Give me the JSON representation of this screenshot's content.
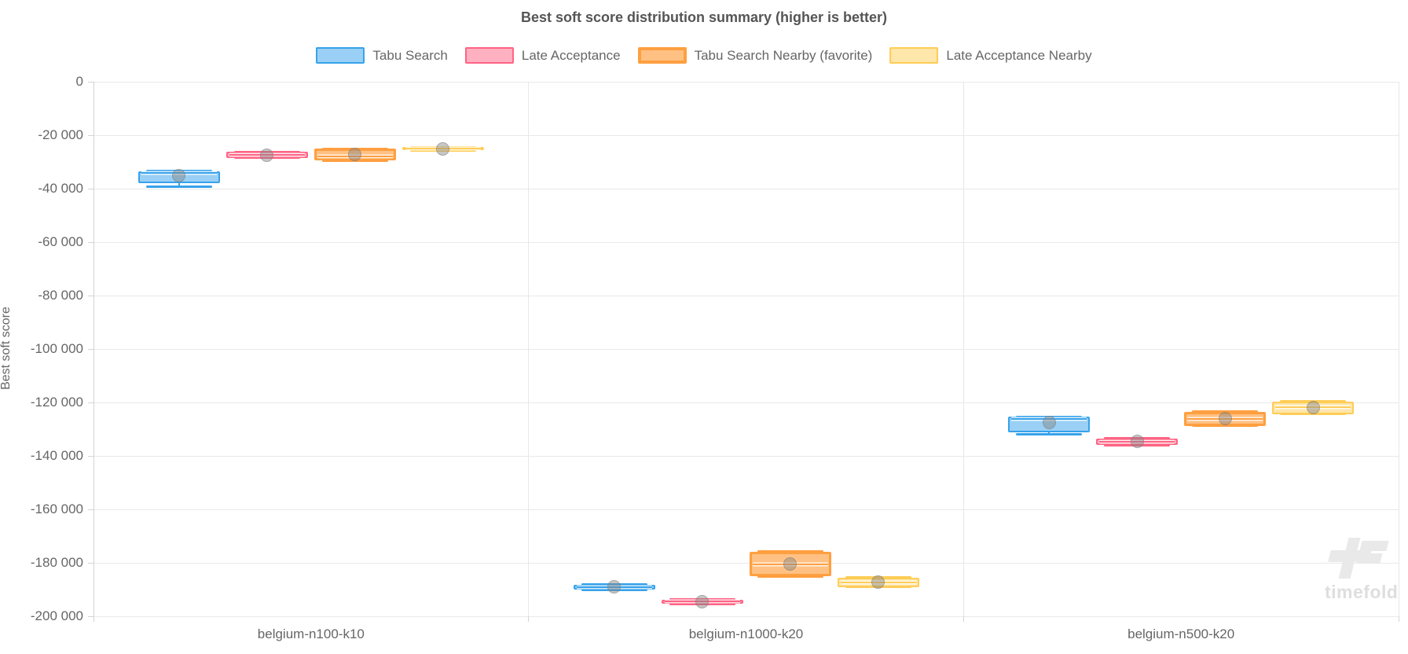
{
  "title": "Best soft score distribution summary (higher is better)",
  "watermark": "timefold",
  "chart_data": {
    "type": "boxplot",
    "title": "Best soft score distribution summary (higher is better)",
    "xlabel": "",
    "ylabel": "Best soft score",
    "ylim": [
      -200000,
      0
    ],
    "ytick_step": 20000,
    "ytick_labels": [
      "0",
      "-20 000",
      "-40 000",
      "-60 000",
      "-80 000",
      "-100 000",
      "-120 000",
      "-140 000",
      "-160 000",
      "-180 000",
      "-200 000"
    ],
    "grid": true,
    "legend_position": "top",
    "categories": [
      "belgium-n100-k10",
      "belgium-n1000-k20",
      "belgium-n500-k20"
    ],
    "series": [
      {
        "name": "Tabu Search",
        "color": "#36A2EB",
        "fill": "rgba(54,162,235,0.5)",
        "favorite": false,
        "boxes": [
          {
            "low": -39300,
            "q1": -37800,
            "median": -34000,
            "q3": -33400,
            "high": -33400,
            "mean": -35200
          },
          {
            "low": -190000,
            "q1": -190000,
            "median": -189100,
            "q3": -188200,
            "high": -188200,
            "mean": -189100
          },
          {
            "low": -131800,
            "q1": -131200,
            "median": -126200,
            "q3": -125300,
            "high": -125300,
            "mean": -127600
          }
        ]
      },
      {
        "name": "Late Acceptance",
        "color": "#FF6384",
        "fill": "rgba(255,99,132,0.5)",
        "favorite": false,
        "boxes": [
          {
            "low": -28400,
            "q1": -28400,
            "median": -27400,
            "q3": -26300,
            "high": -26300,
            "mean": -27500
          },
          {
            "low": -195300,
            "q1": -195300,
            "median": -194500,
            "q3": -193800,
            "high": -193800,
            "mean": -194500
          },
          {
            "low": -135900,
            "q1": -135900,
            "median": -134700,
            "q3": -133500,
            "high": -133500,
            "mean": -134700
          }
        ]
      },
      {
        "name": "Tabu Search Nearby (favorite)",
        "color": "#FF9F40",
        "fill": "rgba(255,159,64,0.65)",
        "favorite": true,
        "boxes": [
          {
            "low": -29500,
            "q1": -29500,
            "median": -28000,
            "q3": -25100,
            "high": -25100,
            "mean": -27200
          },
          {
            "low": -185000,
            "q1": -185000,
            "median": -180600,
            "q3": -175800,
            "high": -175800,
            "mean": -180500
          },
          {
            "low": -128800,
            "q1": -128800,
            "median": -126100,
            "q3": -123500,
            "high": -123500,
            "mean": -126100
          }
        ]
      },
      {
        "name": "Late Acceptance Nearby",
        "color": "#FFCD56",
        "fill": "rgba(255,205,86,0.5)",
        "favorite": false,
        "boxes": [
          {
            "low": -25700,
            "q1": -25700,
            "median": -25100,
            "q3": -24500,
            "high": -24500,
            "mean": -25100
          },
          {
            "low": -189100,
            "q1": -189100,
            "median": -187300,
            "q3": -185500,
            "high": -185500,
            "mean": -187300
          },
          {
            "low": -124400,
            "q1": -124400,
            "median": -121800,
            "q3": -119600,
            "high": -119600,
            "mean": -122000
          }
        ]
      }
    ]
  }
}
